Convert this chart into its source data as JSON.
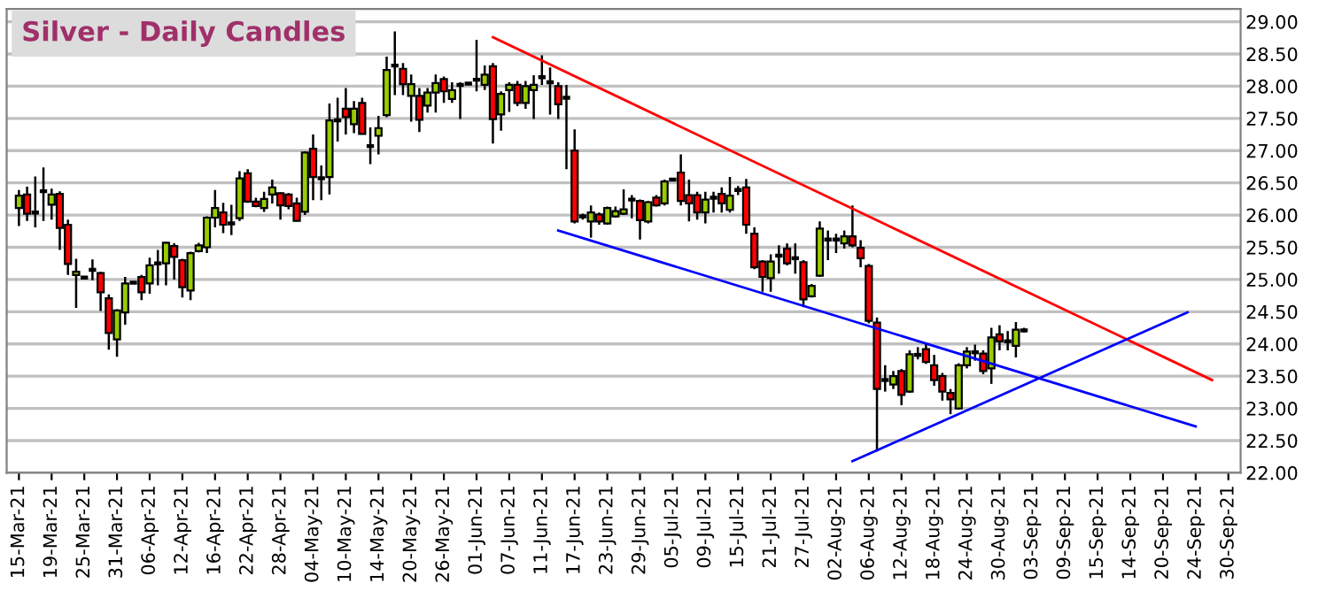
{
  "chart_data": {
    "type": "candlestick",
    "title": "Silver - Daily Candles",
    "categories": [
      "15-Mar-21",
      null,
      null,
      null,
      "19-Mar-21",
      null,
      null,
      null,
      "25-Mar-21",
      null,
      null,
      null,
      "31-Mar-21",
      null,
      null,
      null,
      "06-Apr-21",
      null,
      null,
      null,
      "12-Apr-21",
      null,
      null,
      null,
      "16-Apr-21",
      null,
      null,
      null,
      "22-Apr-21",
      null,
      null,
      null,
      "28-Apr-21",
      null,
      null,
      null,
      "04-May-21",
      null,
      null,
      null,
      "10-May-21",
      null,
      null,
      null,
      "14-May-21",
      null,
      null,
      null,
      "20-May-21",
      null,
      null,
      null,
      "26-May-21",
      null,
      null,
      null,
      "01-Jun-21",
      null,
      null,
      null,
      "07-Jun-21",
      null,
      null,
      null,
      "11-Jun-21",
      null,
      null,
      null,
      "17-Jun-21",
      null,
      null,
      null,
      "23-Jun-21",
      null,
      null,
      null,
      "29-Jun-21",
      null,
      null,
      null,
      "05-Jul-21",
      null,
      null,
      null,
      "09-Jul-21",
      null,
      null,
      null,
      "15-Jul-21",
      null,
      null,
      null,
      "21-Jul-21",
      null,
      null,
      null,
      "27-Jul-21",
      null,
      null,
      null,
      "02-Aug-21",
      null,
      null,
      null,
      "06-Aug-21",
      null,
      null,
      null,
      "12-Aug-21",
      null,
      null,
      null,
      "18-Aug-21",
      null,
      null,
      null,
      "24-Aug-21",
      null,
      null,
      null,
      "30-Aug-21",
      null,
      null,
      null,
      "03-Sep-21",
      null,
      null,
      null,
      "09-Sep-21",
      null,
      null,
      null,
      "15-Sep-21",
      null,
      null,
      null,
      "14-Sep-21",
      null,
      null,
      null,
      "20-Sep-21",
      null,
      null,
      null,
      "24-Sep-21",
      null,
      null,
      null,
      "30-Sep-21"
    ],
    "ohlc": [
      [
        26.11,
        26.39,
        25.83,
        26.3
      ],
      [
        26.32,
        26.44,
        25.91,
        26.02
      ],
      [
        26.04,
        26.6,
        25.81,
        26.04
      ],
      [
        26.37,
        26.74,
        25.91,
        26.37
      ],
      [
        26.16,
        26.41,
        25.93,
        26.32
      ],
      [
        26.33,
        26.37,
        25.46,
        25.8
      ],
      [
        25.85,
        25.93,
        25.07,
        25.24
      ],
      [
        25.07,
        25.32,
        24.56,
        25.12
      ],
      [
        25.03,
        25.05,
        25.0,
        25.03
      ],
      [
        25.15,
        25.31,
        24.99,
        25.15
      ],
      [
        25.1,
        25.12,
        24.51,
        24.8
      ],
      [
        24.71,
        24.77,
        23.91,
        24.17
      ],
      [
        24.07,
        24.54,
        23.8,
        24.52
      ],
      [
        24.49,
        25.04,
        24.3,
        24.94
      ],
      [
        24.95,
        24.96,
        24.94,
        24.95
      ],
      [
        25.04,
        25.07,
        24.68,
        24.8
      ],
      [
        24.94,
        25.34,
        24.78,
        25.22
      ],
      [
        25.25,
        25.46,
        24.91,
        25.25
      ],
      [
        25.25,
        25.59,
        24.91,
        25.57
      ],
      [
        25.52,
        25.56,
        25.0,
        25.35
      ],
      [
        25.3,
        25.32,
        24.72,
        24.88
      ],
      [
        24.83,
        25.43,
        24.68,
        25.41
      ],
      [
        25.44,
        25.57,
        25.42,
        25.53
      ],
      [
        25.5,
        25.98,
        25.41,
        25.96
      ],
      [
        25.96,
        26.39,
        25.81,
        26.11
      ],
      [
        26.04,
        26.19,
        25.72,
        25.85
      ],
      [
        25.87,
        26.16,
        25.69,
        25.87
      ],
      [
        25.95,
        26.68,
        25.91,
        26.57
      ],
      [
        26.65,
        26.71,
        26.19,
        26.21
      ],
      [
        26.21,
        26.27,
        26.12,
        26.14
      ],
      [
        26.11,
        26.36,
        26.05,
        26.25
      ],
      [
        26.32,
        26.55,
        26.18,
        26.43
      ],
      [
        26.34,
        26.35,
        25.93,
        26.15
      ],
      [
        26.32,
        26.34,
        26.09,
        26.14
      ],
      [
        26.18,
        26.27,
        25.9,
        25.91
      ],
      [
        26.05,
        26.99,
        26.0,
        26.97
      ],
      [
        27.03,
        27.25,
        26.23,
        26.59
      ],
      [
        26.57,
        26.77,
        26.23,
        26.57
      ],
      [
        26.59,
        27.73,
        26.32,
        27.47
      ],
      [
        27.47,
        27.82,
        27.14,
        27.47
      ],
      [
        27.65,
        27.97,
        27.25,
        27.52
      ],
      [
        27.41,
        27.77,
        27.27,
        27.65
      ],
      [
        27.74,
        27.82,
        27.25,
        27.26
      ],
      [
        27.07,
        27.36,
        26.79,
        27.07
      ],
      [
        27.23,
        27.54,
        26.94,
        27.35
      ],
      [
        27.55,
        28.46,
        27.52,
        28.25
      ],
      [
        28.32,
        28.85,
        27.86,
        28.32
      ],
      [
        28.27,
        28.36,
        27.86,
        28.03
      ],
      [
        27.85,
        28.18,
        27.45,
        28.03
      ],
      [
        27.85,
        27.97,
        27.29,
        27.48
      ],
      [
        27.7,
        27.97,
        27.59,
        27.9
      ],
      [
        27.9,
        28.18,
        27.59,
        28.05
      ],
      [
        28.11,
        28.15,
        27.74,
        27.92
      ],
      [
        27.8,
        28.06,
        27.74,
        27.94
      ],
      [
        28.02,
        28.06,
        27.49,
        28.02
      ],
      [
        28.04,
        28.06,
        28.02,
        28.04
      ],
      [
        28.1,
        28.72,
        27.92,
        28.1
      ],
      [
        28.02,
        28.32,
        27.94,
        28.18
      ],
      [
        28.31,
        28.36,
        27.11,
        27.49
      ],
      [
        27.56,
        27.92,
        27.31,
        27.88
      ],
      [
        27.94,
        28.06,
        27.6,
        28.02
      ],
      [
        28.02,
        28.08,
        27.69,
        27.74
      ],
      [
        27.74,
        28.08,
        27.65,
        28.0
      ],
      [
        27.94,
        28.17,
        27.49,
        28.02
      ],
      [
        28.14,
        28.48,
        28.02,
        28.14
      ],
      [
        28.06,
        28.29,
        27.56,
        28.06
      ],
      [
        28.0,
        28.06,
        27.49,
        27.72
      ],
      [
        27.82,
        28.02,
        26.71,
        27.82
      ],
      [
        27.0,
        27.33,
        25.87,
        25.9
      ],
      [
        25.98,
        26.02,
        25.93,
        25.98
      ],
      [
        25.9,
        26.15,
        25.65,
        26.04
      ],
      [
        26.01,
        26.04,
        25.85,
        25.9
      ],
      [
        25.87,
        26.13,
        25.85,
        26.11
      ],
      [
        25.98,
        26.13,
        25.96,
        26.06
      ],
      [
        26.02,
        26.4,
        26.0,
        26.09
      ],
      [
        26.24,
        26.31,
        25.95,
        26.24
      ],
      [
        26.22,
        26.24,
        25.62,
        25.92
      ],
      [
        25.9,
        26.22,
        25.87,
        26.2
      ],
      [
        26.27,
        26.31,
        26.13,
        26.15
      ],
      [
        26.18,
        26.55,
        26.15,
        26.52
      ],
      [
        26.55,
        26.57,
        26.53,
        26.55
      ],
      [
        26.66,
        26.94,
        26.15,
        26.22
      ],
      [
        26.31,
        26.55,
        25.9,
        26.18
      ],
      [
        26.31,
        26.36,
        25.93,
        26.04
      ],
      [
        26.04,
        26.36,
        25.87,
        26.24
      ],
      [
        26.27,
        26.36,
        26.04,
        26.27
      ],
      [
        26.33,
        26.43,
        26.04,
        26.18
      ],
      [
        26.08,
        26.59,
        26.04,
        26.3
      ],
      [
        26.39,
        26.45,
        26.31,
        26.39
      ],
      [
        26.43,
        26.56,
        25.71,
        25.85
      ],
      [
        25.71,
        25.81,
        25.16,
        25.19
      ],
      [
        25.28,
        25.3,
        24.81,
        25.04
      ],
      [
        25.02,
        25.39,
        24.81,
        25.28
      ],
      [
        25.37,
        25.53,
        25.09,
        25.37
      ],
      [
        25.48,
        25.56,
        25.22,
        25.25
      ],
      [
        25.33,
        25.56,
        25.09,
        25.33
      ],
      [
        25.27,
        25.3,
        24.57,
        24.69
      ],
      [
        24.74,
        24.93,
        24.72,
        24.9
      ],
      [
        25.06,
        25.9,
        25.04,
        25.79
      ],
      [
        25.62,
        25.76,
        25.3,
        25.62
      ],
      [
        25.62,
        25.71,
        25.41,
        25.62
      ],
      [
        25.56,
        25.76,
        25.48,
        25.67
      ],
      [
        25.67,
        26.15,
        25.5,
        25.53
      ],
      [
        25.49,
        25.61,
        25.19,
        25.33
      ],
      [
        25.21,
        25.24,
        24.32,
        24.36
      ],
      [
        24.33,
        24.41,
        22.33,
        23.3
      ],
      [
        23.44,
        23.67,
        23.26,
        23.44
      ],
      [
        23.37,
        23.58,
        23.3,
        23.5
      ],
      [
        23.58,
        23.61,
        23.05,
        23.21
      ],
      [
        23.26,
        23.9,
        23.24,
        23.84
      ],
      [
        23.83,
        23.95,
        23.76,
        23.83
      ],
      [
        23.92,
        24.0,
        23.69,
        23.72
      ],
      [
        23.67,
        23.83,
        23.35,
        23.44
      ],
      [
        23.5,
        23.55,
        23.12,
        23.26
      ],
      [
        23.24,
        23.3,
        22.91,
        23.14
      ],
      [
        23.0,
        23.7,
        22.98,
        23.67
      ],
      [
        23.67,
        23.95,
        23.62,
        23.88
      ],
      [
        23.87,
        23.99,
        23.74,
        23.87
      ],
      [
        23.85,
        23.9,
        23.53,
        23.58
      ],
      [
        23.62,
        24.25,
        23.38,
        24.1
      ],
      [
        24.15,
        24.29,
        23.9,
        24.04
      ],
      [
        24.04,
        24.2,
        23.9,
        24.04
      ],
      [
        23.97,
        24.34,
        23.79,
        24.22
      ],
      [
        24.21,
        24.25,
        24.18,
        24.21
      ],
      null,
      null,
      null,
      null,
      null,
      null,
      null,
      null,
      null,
      null,
      null,
      null,
      null,
      null,
      null,
      null,
      null,
      null,
      null,
      null,
      null,
      null,
      null,
      null,
      null
    ],
    "colors": [
      "#99cc00",
      "#ff0000",
      "#000000",
      "#000000",
      "#99cc00",
      "#ff0000",
      "#ff0000",
      "#99cc00",
      "#000000",
      "#000000",
      "#ff0000",
      "#ff0000",
      "#99cc00",
      "#99cc00",
      "#000000",
      "#ff0000",
      "#99cc00",
      "#000000",
      "#99cc00",
      "#ff0000",
      "#ff0000",
      "#99cc00",
      "#99cc00",
      "#99cc00",
      "#99cc00",
      "#ff0000",
      "#000000",
      "#99cc00",
      "#ff0000",
      "#ff0000",
      "#99cc00",
      "#99cc00",
      "#ff0000",
      "#ff0000",
      "#ff0000",
      "#99cc00",
      "#ff0000",
      "#000000",
      "#99cc00",
      "#000000",
      "#ff0000",
      "#99cc00",
      "#ff0000",
      "#000000",
      "#99cc00",
      "#99cc00",
      "#000000",
      "#ff0000",
      "#99cc00",
      "#ff0000",
      "#99cc00",
      "#99cc00",
      "#ff0000",
      "#99cc00",
      "#000000",
      "#000000",
      "#000000",
      "#99cc00",
      "#ff0000",
      "#99cc00",
      "#99cc00",
      "#ff0000",
      "#99cc00",
      "#99cc00",
      "#000000",
      "#000000",
      "#ff0000",
      "#000000",
      "#ff0000",
      "#000000",
      "#99cc00",
      "#ff0000",
      "#99cc00",
      "#99cc00",
      "#99cc00",
      "#000000",
      "#ff0000",
      "#99cc00",
      "#ff0000",
      "#99cc00",
      "#000000",
      "#ff0000",
      "#ff0000",
      "#ff0000",
      "#99cc00",
      "#000000",
      "#ff0000",
      "#99cc00",
      "#000000",
      "#ff0000",
      "#ff0000",
      "#ff0000",
      "#99cc00",
      "#000000",
      "#ff0000",
      "#000000",
      "#ff0000",
      "#99cc00",
      "#99cc00",
      "#000000",
      "#000000",
      "#99cc00",
      "#ff0000",
      "#ff0000",
      "#ff0000",
      "#ff0000",
      "#000000",
      "#99cc00",
      "#ff0000",
      "#99cc00",
      "#000000",
      "#ff0000",
      "#ff0000",
      "#ff0000",
      "#ff0000",
      "#99cc00",
      "#99cc00",
      "#000000",
      "#ff0000",
      "#99cc00",
      "#ff0000",
      "#000000",
      "#99cc00",
      "#000000",
      null,
      null,
      null,
      null,
      null,
      null,
      null,
      null,
      null,
      null,
      null,
      null,
      null,
      null,
      null,
      null,
      null,
      null,
      null,
      null,
      null,
      null,
      null,
      null,
      null
    ],
    "series": [
      {
        "type": "line",
        "color": "#ff0000",
        "values": [
          null,
          null,
          null,
          null,
          null,
          null,
          null,
          null,
          null,
          null,
          null,
          null,
          null,
          null,
          null,
          null,
          null,
          null,
          null,
          null,
          null,
          null,
          null,
          null,
          null,
          null,
          null,
          null,
          null,
          null,
          null,
          null,
          null,
          null,
          null,
          null,
          null,
          null,
          null,
          null,
          null,
          null,
          null,
          null,
          null,
          null,
          null,
          null,
          null,
          null,
          null,
          null,
          null,
          null,
          null,
          null,
          null,
          null,
          28.76,
          null,
          null,
          null,
          null,
          null,
          null,
          null,
          null,
          null,
          null,
          null,
          null,
          null,
          null,
          null,
          null,
          null,
          null,
          null,
          null,
          null,
          null,
          null,
          null,
          null,
          null,
          null,
          null,
          null,
          null,
          null,
          null,
          null,
          null,
          null,
          null,
          null,
          null,
          null,
          null,
          null,
          null,
          null,
          null,
          null,
          null,
          null,
          null,
          null,
          null,
          null,
          null,
          null,
          null,
          null,
          null,
          null,
          null,
          null,
          null,
          null,
          null,
          null,
          null,
          null,
          null,
          null,
          null,
          null,
          null,
          null,
          null,
          null,
          null,
          null,
          null,
          null,
          null,
          null,
          null,
          null,
          null,
          null,
          null,
          null,
          null,
          null,
          23.44,
          null,
          null
        ]
      },
      {
        "type": "line",
        "color": "#0000ff",
        "values": [
          null,
          null,
          null,
          null,
          null,
          null,
          null,
          null,
          null,
          null,
          null,
          null,
          null,
          null,
          null,
          null,
          null,
          null,
          null,
          null,
          null,
          null,
          null,
          null,
          null,
          null,
          null,
          null,
          null,
          null,
          null,
          null,
          null,
          null,
          null,
          null,
          null,
          null,
          null,
          null,
          null,
          null,
          null,
          null,
          null,
          null,
          null,
          null,
          null,
          null,
          null,
          null,
          null,
          null,
          null,
          null,
          null,
          null,
          null,
          null,
          null,
          null,
          null,
          null,
          null,
          null,
          25.76,
          null,
          null,
          null,
          null,
          null,
          null,
          null,
          null,
          null,
          null,
          null,
          null,
          null,
          null,
          null,
          null,
          null,
          null,
          null,
          null,
          null,
          null,
          null,
          null,
          null,
          null,
          null,
          null,
          null,
          null,
          null,
          null,
          null,
          null,
          null,
          null,
          null,
          null,
          null,
          null,
          null,
          null,
          null,
          null,
          null,
          null,
          null,
          null,
          null,
          null,
          null,
          null,
          null,
          null,
          null,
          null,
          null,
          null,
          null,
          null,
          null,
          null,
          null,
          null,
          null,
          null,
          null,
          null,
          null,
          null,
          null,
          null,
          null,
          null,
          null,
          null,
          null,
          22.72,
          null,
          null,
          null,
          null
        ]
      },
      {
        "type": "line",
        "color": "#0000ff",
        "values": [
          null,
          null,
          null,
          null,
          null,
          null,
          null,
          null,
          null,
          null,
          null,
          null,
          null,
          null,
          null,
          null,
          null,
          null,
          null,
          null,
          null,
          null,
          null,
          null,
          null,
          null,
          null,
          null,
          null,
          null,
          null,
          null,
          null,
          null,
          null,
          null,
          null,
          null,
          null,
          null,
          null,
          null,
          null,
          null,
          null,
          null,
          null,
          null,
          null,
          null,
          null,
          null,
          null,
          null,
          null,
          null,
          null,
          null,
          null,
          null,
          null,
          null,
          null,
          null,
          null,
          null,
          null,
          null,
          null,
          null,
          null,
          null,
          null,
          null,
          null,
          null,
          null,
          null,
          null,
          null,
          null,
          null,
          null,
          null,
          null,
          null,
          null,
          null,
          null,
          null,
          null,
          null,
          null,
          null,
          null,
          null,
          null,
          null,
          null,
          null,
          null,
          null,
          22.18,
          null,
          null,
          null,
          null,
          null,
          null,
          null,
          null,
          null,
          null,
          null,
          null,
          null,
          null,
          null,
          null,
          null,
          null,
          null,
          null,
          null,
          null,
          null,
          null,
          null,
          null,
          null,
          null,
          null,
          null,
          null,
          null,
          null,
          null,
          null,
          null,
          null,
          null,
          null,
          null,
          24.49,
          null,
          null,
          null,
          null,
          null
        ]
      }
    ],
    "ylim": [
      22,
      29.2
    ],
    "yticks": [
      {
        "value": 22,
        "label": "22.00"
      },
      {
        "value": 22.5,
        "label": "22.50"
      },
      {
        "value": 23,
        "label": "23.00"
      },
      {
        "value": 23.5,
        "label": "23.50"
      },
      {
        "value": 24,
        "label": "24.00"
      },
      {
        "value": 24.5,
        "label": "24.50"
      },
      {
        "value": 25,
        "label": "25.00"
      },
      {
        "value": 25.5,
        "label": "25.50"
      },
      {
        "value": 26,
        "label": "26.00"
      },
      {
        "value": 26.5,
        "label": "26.50"
      },
      {
        "value": 27,
        "label": "27.00"
      },
      {
        "value": 27.5,
        "label": "27.50"
      },
      {
        "value": 28,
        "label": "28.00"
      },
      {
        "value": 28.5,
        "label": "28.50"
      },
      {
        "value": 29,
        "label": "29.00"
      }
    ],
    "grid": "y"
  }
}
